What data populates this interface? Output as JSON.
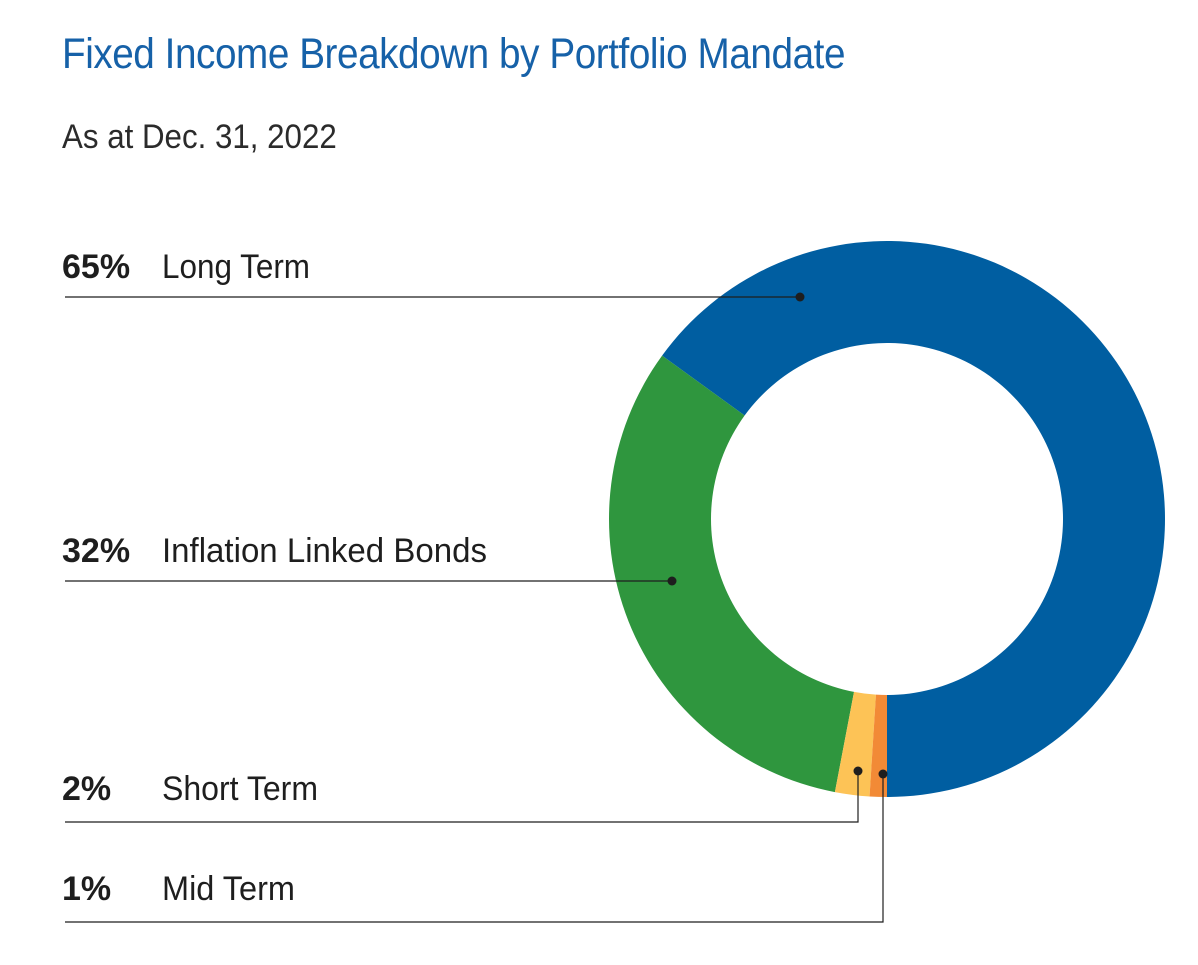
{
  "title": "Fixed Income Breakdown by Portfolio Mandate",
  "subtitle": "As at Dec. 31, 2022",
  "chart_data": {
    "type": "pie",
    "title": "Fixed Income Breakdown by Portfolio Mandate",
    "subtitle": "As at Dec. 31, 2022",
    "donut": true,
    "legend": "left",
    "slices": [
      {
        "label": "Long Term",
        "value": 65,
        "value_label": "65%",
        "color": "#005ea1"
      },
      {
        "label": "Inflation Linked Bonds",
        "value": 32,
        "value_label": "32%",
        "color": "#2f963e"
      },
      {
        "label": "Short Term",
        "value": 2,
        "value_label": "2%",
        "color": "#fdc356"
      },
      {
        "label": "Mid Term",
        "value": 1,
        "value_label": "1%",
        "color": "#f28a36"
      }
    ]
  }
}
